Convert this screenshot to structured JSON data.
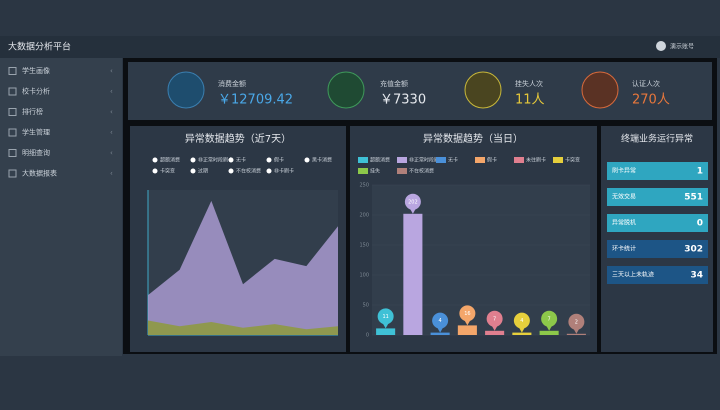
{
  "header": {
    "title": "大数据分析平台",
    "user": "演示账号"
  },
  "sidebar": {
    "items": [
      "学生画像",
      "校卡分析",
      "排行榜",
      "学生管理",
      "明细查询",
      "大数据报表"
    ]
  },
  "kpis": [
    {
      "label": "消费金额",
      "value": "￥12709.42"
    },
    {
      "label": "充值金额",
      "value": "￥7330"
    },
    {
      "label": "挂失人次",
      "value": "11人"
    },
    {
      "label": "认证人次",
      "value": "270人"
    }
  ],
  "chart_data": [
    {
      "type": "area",
      "title": "异常数据趋势（近7天）",
      "legend": [
        "超额消费",
        "非正常时段刷卡",
        "无卡",
        "假卡",
        "黑卡消费",
        "卡突变",
        "过期",
        "不在校消费",
        "非卡刷卡"
      ],
      "categories": [
        null,
        null,
        null,
        null,
        null,
        null,
        null
      ],
      "series": [
        {
          "color": "#a99ad0",
          "values": [
            55,
            90,
            185,
            70,
            105,
            95,
            150
          ]
        },
        {
          "color": "#8d9a3c",
          "values": [
            20,
            12,
            18,
            10,
            15,
            8,
            12
          ]
        }
      ],
      "ylim": [
        0,
        200
      ]
    },
    {
      "type": "bar",
      "title": "异常数据趋势（当日）",
      "categories": [
        "超额消费",
        "非正常时段刷卡",
        "无卡",
        "假卡",
        "未往刷卡",
        "卡突变",
        "挂失",
        "不在校消费"
      ],
      "values": [
        11,
        202,
        4,
        16,
        7,
        4,
        7,
        2
      ],
      "colors": [
        "#3fc1d6",
        "#b9a6e0",
        "#4a90d9",
        "#f4a66a",
        "#e07f8f",
        "#e6cf3c",
        "#8dc84a",
        "#b0807a"
      ],
      "ylim": [
        0,
        250
      ],
      "yticks": [
        0,
        50,
        100,
        150,
        200,
        250
      ]
    }
  ],
  "status_list": {
    "title": "终端业务运行异常",
    "rows": [
      {
        "label": "刷卡异常",
        "count": "1"
      },
      {
        "label": "无效交易",
        "count": "551"
      },
      {
        "label": "异常脱机",
        "count": "0"
      },
      {
        "label": "环卡统计",
        "count": "302"
      },
      {
        "label": "三天以上未轨迹",
        "count": "34"
      }
    ]
  }
}
